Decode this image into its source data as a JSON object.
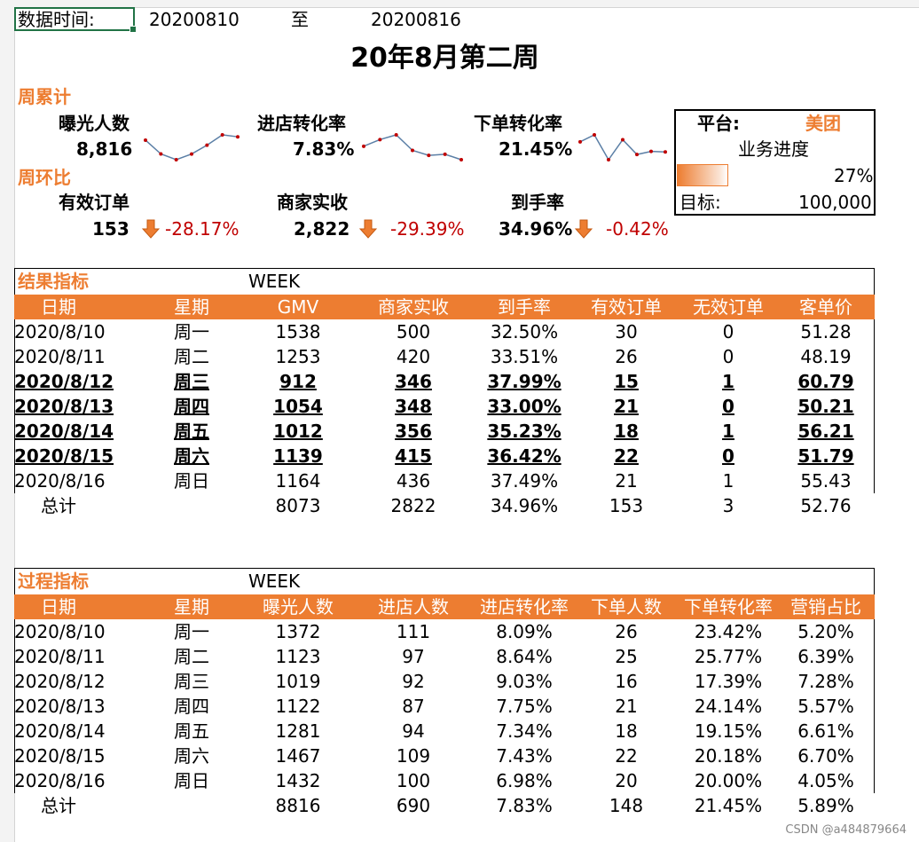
{
  "header": {
    "label": "数据时间:",
    "start": "20200810",
    "to": "至",
    "end": "20200816",
    "title": "20年8月第二周"
  },
  "weekly": {
    "section_cum": "周累计",
    "section_ring": "周环比",
    "kpis": [
      {
        "name": "曝光人数",
        "value": "8,816",
        "trend": [
          1372,
          1123,
          1019,
          1122,
          1281,
          1467,
          1432
        ]
      },
      {
        "name": "进店转化率",
        "value": "7.83%",
        "trend": [
          8.09,
          8.64,
          9.03,
          7.75,
          7.34,
          7.43,
          6.98
        ]
      },
      {
        "name": "下单转化率",
        "value": "21.45%",
        "trend": [
          23.42,
          25.77,
          17.39,
          24.14,
          19.15,
          20.18,
          20.0
        ]
      }
    ],
    "changes": [
      {
        "name": "有效订单",
        "value": "153",
        "change": "-28.17%"
      },
      {
        "name": "商家实收",
        "value": "2,822",
        "change": "-29.39%"
      },
      {
        "name": "到手率",
        "value": "34.96%",
        "change": "-0.42%"
      }
    ]
  },
  "panel": {
    "platform_label": "平台:",
    "platform": "美团",
    "progress_label": "业务进度",
    "progress": "27%",
    "progress_value": 0.27,
    "target_label": "目标:",
    "target": "100,000"
  },
  "result": {
    "section": "结果指标",
    "week": "WEEK",
    "headers": [
      "日期",
      "星期",
      "GMV",
      "商家实收",
      "到手率",
      "有效订单",
      "无效订单",
      "客单价"
    ],
    "rows": [
      [
        "2020/8/10",
        "周一",
        "1538",
        "500",
        "32.50%",
        "30",
        "0",
        "51.28"
      ],
      [
        "2020/8/11",
        "周二",
        "1253",
        "420",
        "33.51%",
        "26",
        "0",
        "48.19"
      ],
      [
        "2020/8/12",
        "周三",
        "912",
        "346",
        "37.99%",
        "15",
        "1",
        "60.79"
      ],
      [
        "2020/8/13",
        "周四",
        "1054",
        "348",
        "33.00%",
        "21",
        "0",
        "50.21"
      ],
      [
        "2020/8/14",
        "周五",
        "1012",
        "356",
        "35.23%",
        "18",
        "1",
        "56.21"
      ],
      [
        "2020/8/15",
        "周六",
        "1139",
        "415",
        "36.42%",
        "22",
        "0",
        "51.79"
      ],
      [
        "2020/8/16",
        "周日",
        "1164",
        "436",
        "37.49%",
        "21",
        "1",
        "55.43"
      ]
    ],
    "total": [
      "总计",
      "",
      "8073",
      "2822",
      "34.96%",
      "153",
      "3",
      "52.76"
    ]
  },
  "process": {
    "section": "过程指标",
    "week": "WEEK",
    "headers": [
      "日期",
      "星期",
      "曝光人数",
      "进店人数",
      "进店转化率",
      "下单人数",
      "下单转化率",
      "营销占比"
    ],
    "rows": [
      [
        "2020/8/10",
        "周一",
        "1372",
        "111",
        "8.09%",
        "26",
        "23.42%",
        "5.20%"
      ],
      [
        "2020/8/11",
        "周二",
        "1123",
        "97",
        "8.64%",
        "25",
        "25.77%",
        "6.39%"
      ],
      [
        "2020/8/12",
        "周三",
        "1019",
        "92",
        "9.03%",
        "16",
        "17.39%",
        "7.28%"
      ],
      [
        "2020/8/13",
        "周四",
        "1122",
        "87",
        "7.75%",
        "21",
        "24.14%",
        "5.57%"
      ],
      [
        "2020/8/14",
        "周五",
        "1281",
        "94",
        "7.34%",
        "18",
        "19.15%",
        "6.61%"
      ],
      [
        "2020/8/15",
        "周六",
        "1467",
        "109",
        "7.43%",
        "22",
        "20.18%",
        "6.70%"
      ],
      [
        "2020/8/16",
        "周日",
        "1432",
        "100",
        "6.98%",
        "20",
        "20.00%",
        "4.05%"
      ]
    ],
    "total": [
      "总计",
      "",
      "8816",
      "690",
      "7.83%",
      "148",
      "21.45%",
      "5.89%"
    ]
  },
  "watermark": "CSDN @a484879664",
  "colors": {
    "accent": "#ed7d31",
    "negative": "#c00000",
    "spark_line": "#5b7fa6",
    "spark_point": "#c00000"
  }
}
